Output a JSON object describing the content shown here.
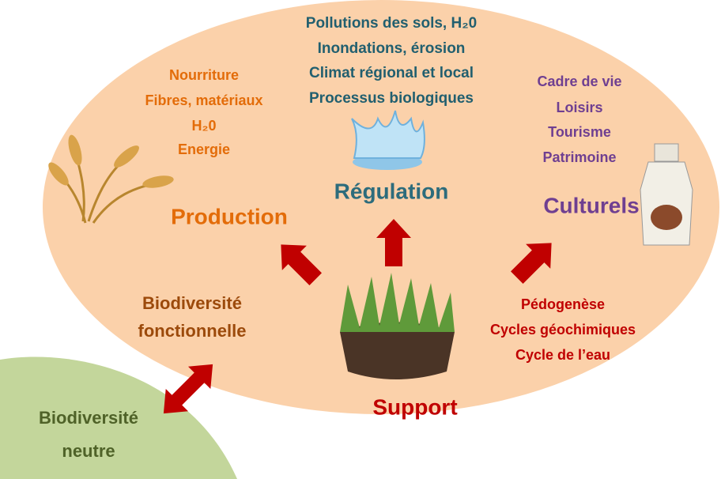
{
  "regulation": {
    "title": "Régulation",
    "items": [
      "Pollutions des sols, H₂0",
      "Inondations, érosion",
      "Climat régional et local",
      "Processus biologiques"
    ]
  },
  "production": {
    "title": "Production",
    "items": [
      "Nourriture",
      "Fibres, matériaux",
      "H₂0",
      "Energie"
    ]
  },
  "culturels": {
    "title": "Culturels",
    "items": [
      "Cadre de vie",
      "Loisirs",
      "Tourisme",
      "Patrimoine"
    ]
  },
  "support": {
    "title": "Support",
    "items": [
      "Pédogenèse",
      "Cycles géochimiques",
      "Cycle de l’eau"
    ]
  },
  "biodiversite_fonctionnelle": {
    "lines": [
      "Biodiversité",
      "fonctionnelle"
    ]
  },
  "biodiversite_neutre": {
    "lines": [
      "Biodiversité",
      "neutre"
    ]
  }
}
